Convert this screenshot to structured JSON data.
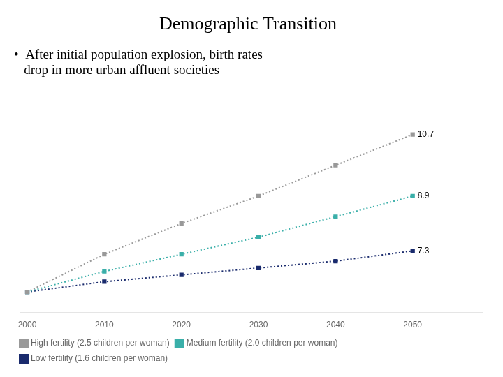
{
  "chart_data": {
    "type": "line",
    "title": "Demographic Transition",
    "subtitle": [
      "•  After initial population explosion, birth rates",
      "   drop in more urban affluent societies"
    ],
    "x": [
      2000,
      2010,
      2020,
      2030,
      2040,
      2050
    ],
    "xlim": [
      1999,
      2059
    ],
    "xticks": [
      2000,
      2010,
      2020,
      2030,
      2040,
      2050
    ],
    "ylim": [
      5.5,
      12.0
    ],
    "tick_labels": "x",
    "grid": false,
    "legend": "bottom left",
    "marker": "square",
    "line_style": "dotted",
    "series": [
      {
        "name": "High fertility (2.5 children per woman)",
        "color": "#999999",
        "values": [
          6.1,
          7.2,
          8.1,
          8.9,
          9.8,
          10.7
        ],
        "value_labels": [
          null,
          null,
          null,
          null,
          null,
          "10.7"
        ]
      },
      {
        "name": "Medium fertility (2.0 children per woman)",
        "color": "#3aafa9",
        "values": [
          6.1,
          6.7,
          7.2,
          7.7,
          8.3,
          8.9
        ],
        "value_labels": [
          null,
          null,
          null,
          null,
          null,
          "8.9"
        ]
      },
      {
        "name": "Low fertility (1.6 children per woman)",
        "color": "#1a2b6d",
        "values": [
          6.1,
          6.4,
          6.6,
          6.8,
          7.0,
          7.3
        ],
        "value_labels": [
          null,
          null,
          null,
          null,
          null,
          "7.3"
        ]
      }
    ]
  }
}
